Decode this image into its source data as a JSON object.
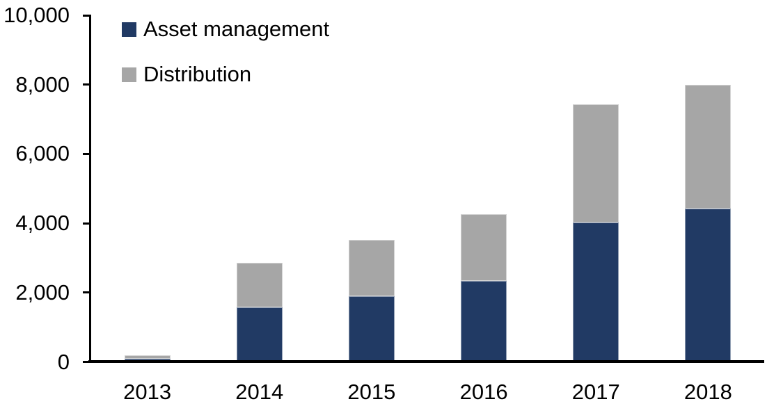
{
  "chart_data": {
    "type": "bar",
    "stacked": true,
    "categories": [
      "2013",
      "2014",
      "2015",
      "2016",
      "2017",
      "2018"
    ],
    "series": [
      {
        "name": "Asset management",
        "color": "#213A64",
        "values": [
          100,
          1570,
          1900,
          2340,
          4020,
          4430
        ]
      },
      {
        "name": "Distribution",
        "color": "#A6A6A6",
        "values": [
          100,
          1290,
          1620,
          1930,
          3410,
          3570
        ]
      }
    ],
    "totals": [
      200,
      2860,
      3520,
      4270,
      7430,
      8000
    ],
    "title": "",
    "xlabel": "",
    "ylabel": "",
    "ylim": [
      0,
      10000
    ],
    "yticks": [
      "0",
      "2,000",
      "4,000",
      "6,000",
      "8,000",
      "10,000"
    ],
    "grid": false,
    "legend_position": "top-left-inside",
    "axis_color": "#000000",
    "text_color": "#000000",
    "background": "#FFFFFF"
  }
}
